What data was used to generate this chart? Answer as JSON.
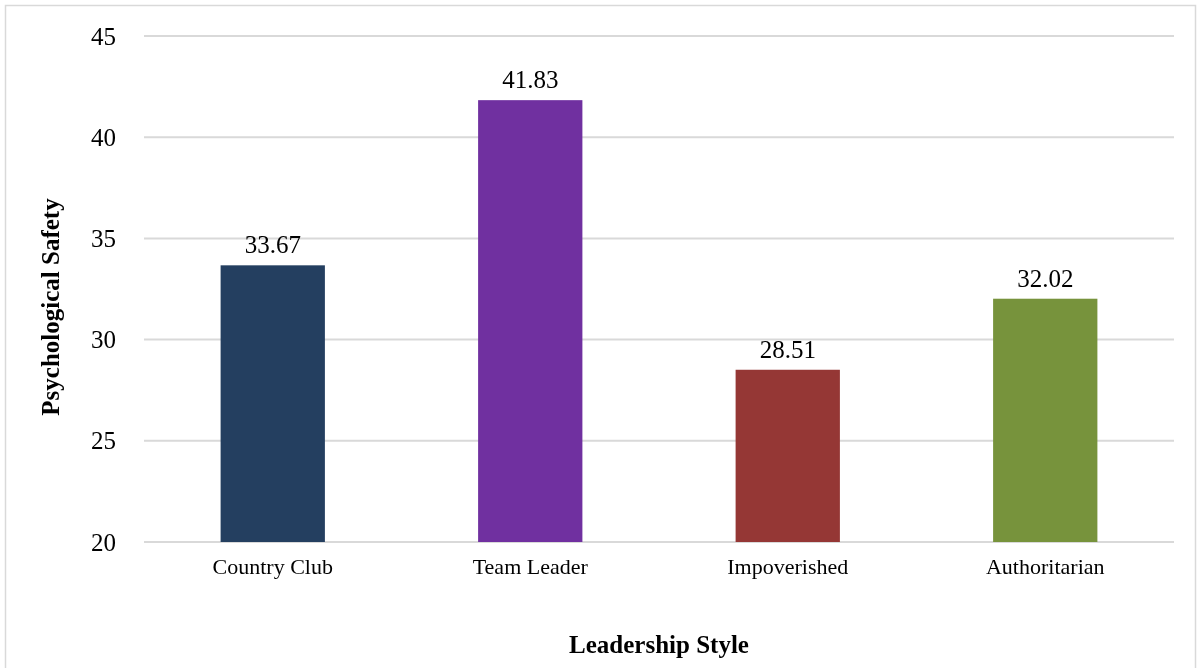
{
  "chart_data": {
    "type": "bar",
    "xlabel": "Leadership Style",
    "ylabel": "Psychological Safety",
    "categories": [
      "Country Club",
      "Team Leader",
      "Impoverished",
      "Authoritarian"
    ],
    "values": [
      33.67,
      41.83,
      28.51,
      32.02
    ],
    "colors": [
      "#243f60",
      "#7030a0",
      "#953735",
      "#77933c"
    ],
    "ylim": [
      20,
      45
    ],
    "yticks": [
      20,
      25,
      30,
      35,
      40,
      45
    ],
    "grid": "y",
    "data_labels": true
  }
}
